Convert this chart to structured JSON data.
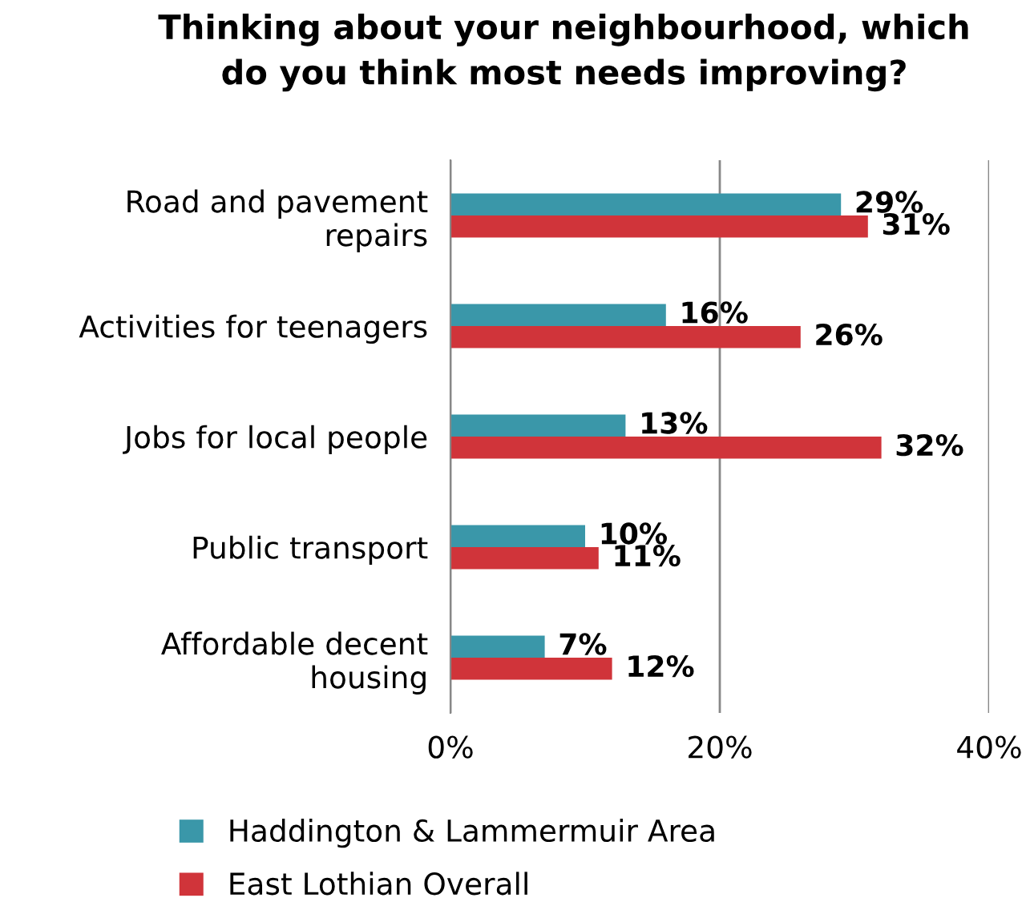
{
  "chart_data": {
    "type": "bar",
    "orientation": "horizontal",
    "title": "Thinking about your neighbourhood, which\ndo you think most needs improving?",
    "categories": [
      "Road and pavement\nrepairs",
      "Activities for teenagers",
      "Jobs for local people",
      "Public transport",
      "Affordable decent\nhousing"
    ],
    "series": [
      {
        "name": "Haddington & Lammermuir Area",
        "color": "#3a97a9",
        "values": [
          29,
          16,
          13,
          10,
          7
        ],
        "value_labels": [
          "29%",
          "16%",
          "13%",
          "10%",
          "7%"
        ]
      },
      {
        "name": "East Lothian Overall",
        "color": "#d0343a",
        "values": [
          31,
          26,
          32,
          11,
          12
        ],
        "value_labels": [
          "31%",
          "26%",
          "32%",
          "11%",
          "12%"
        ]
      }
    ],
    "xlim": [
      0,
      40
    ],
    "xticks": [
      {
        "value": 0,
        "label": "0%"
      },
      {
        "value": 20,
        "label": "20%"
      },
      {
        "value": 40,
        "label": "40%"
      }
    ],
    "grid": "x",
    "legend": "bottom"
  }
}
